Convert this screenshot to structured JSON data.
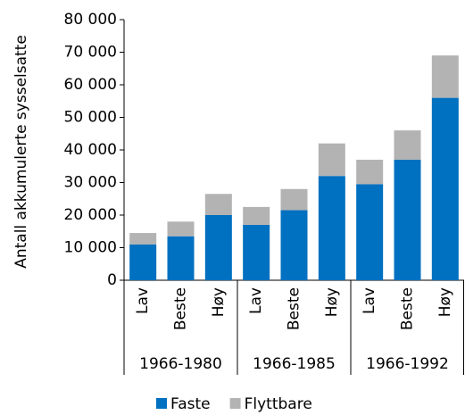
{
  "chart_data": {
    "type": "stacked_bar",
    "y_label": "Antall akkumulerte sysselsatte",
    "categories": [
      "Lav",
      "Beste",
      "Høy",
      "Lav",
      "Beste",
      "Høy",
      "Lav",
      "Beste",
      "Høy"
    ],
    "groups": [
      "1966-1980",
      "1966-1985",
      "1966-1992"
    ],
    "series": [
      {
        "name": "Faste",
        "color": "#0070c0",
        "values": [
          11000,
          13500,
          20000,
          17000,
          21500,
          32000,
          29500,
          37000,
          56000
        ]
      },
      {
        "name": "Flyttbare",
        "color": "#b3b3b3",
        "values": [
          3500,
          4500,
          6500,
          5500,
          6500,
          10000,
          7500,
          9000,
          13000
        ]
      }
    ],
    "ylim": [
      0,
      80000
    ],
    "yticks": [
      0,
      {
        "value": 10000,
        "label": "10 000"
      },
      {
        "value": 20000,
        "label": "20 000"
      },
      {
        "value": 30000,
        "label": "30 000"
      },
      {
        "value": 40000,
        "label": "40 000"
      },
      {
        "value": 50000,
        "label": "50 000"
      },
      {
        "value": 60000,
        "label": "60 000"
      },
      {
        "value": 70000,
        "label": "70 000"
      },
      {
        "value": 80000,
        "label": "80 000"
      }
    ],
    "legend": "bottom"
  }
}
